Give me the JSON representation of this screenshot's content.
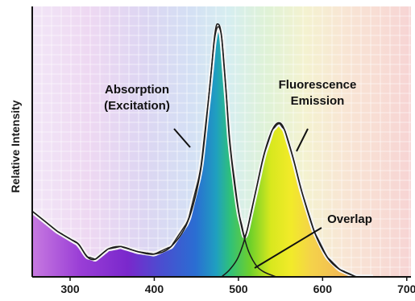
{
  "chart_data": {
    "type": "area",
    "title": "",
    "xlabel": "",
    "ylabel": "Relative Intensity",
    "xlim": [
      255,
      705
    ],
    "ylim": [
      0,
      1
    ],
    "xticks": [
      300,
      400,
      500,
      600,
      700
    ],
    "grid": true,
    "background": "visible spectrum gradient (violet to red)",
    "series": [
      {
        "role": "absorption",
        "x": [
          255,
          270,
          285,
          300,
          310,
          320,
          330,
          345,
          360,
          380,
          400,
          420,
          440,
          455,
          465,
          472,
          476,
          480,
          485,
          490,
          500,
          510,
          520,
          530,
          545
        ],
        "y": [
          0.26,
          0.22,
          0.18,
          0.15,
          0.13,
          0.08,
          0.07,
          0.11,
          0.12,
          0.1,
          0.09,
          0.12,
          0.22,
          0.42,
          0.72,
          0.96,
          1.0,
          0.95,
          0.75,
          0.52,
          0.26,
          0.12,
          0.05,
          0.02,
          0.0
        ]
      },
      {
        "role": "emission",
        "x": [
          480,
          490,
          500,
          510,
          520,
          530,
          540,
          548,
          555,
          565,
          575,
          590,
          605,
          620,
          640
        ],
        "y": [
          0.0,
          0.03,
          0.08,
          0.18,
          0.33,
          0.48,
          0.58,
          0.61,
          0.58,
          0.47,
          0.34,
          0.18,
          0.08,
          0.03,
          0.0
        ]
      }
    ],
    "annotations": [
      {
        "line1": "Absorption",
        "line2": "(Excitation)"
      },
      {
        "line1": "Fluorescence",
        "line2": "Emission"
      },
      {
        "line1": "Overlap"
      }
    ]
  }
}
